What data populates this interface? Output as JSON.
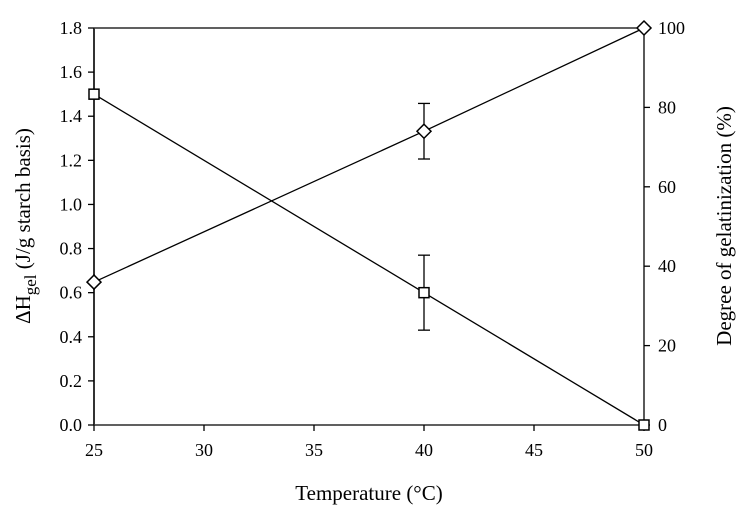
{
  "chart_data": {
    "type": "line",
    "title": "",
    "xlabel": "Temperature (°C)",
    "ylabel": "ΔHgel (J/g starch basis)",
    "ylabel_main": "ΔH",
    "ylabel_sub": "gel",
    "ylabel_rest": " (J/g starch basis)",
    "y2label": "Degree of gelatinization (%)",
    "xlim": [
      25,
      50
    ],
    "ylim": [
      0,
      1.8
    ],
    "y2lim": [
      0,
      100
    ],
    "x_ticks": [
      "25",
      "30",
      "35",
      "40",
      "45",
      "50"
    ],
    "y_ticks": [
      "0.0",
      "0.2",
      "0.4",
      "0.6",
      "0.8",
      "1.0",
      "1.2",
      "1.4",
      "1.6",
      "1.8"
    ],
    "y2_ticks": [
      "0",
      "20",
      "40",
      "60",
      "80",
      "100"
    ],
    "grid": false,
    "x": [
      25,
      40,
      50
    ],
    "series": [
      {
        "name": "ΔHgel",
        "axis": "left",
        "marker": "square",
        "values": [
          1.5,
          0.6,
          0.0
        ],
        "error_low": [
          null,
          0.43,
          null
        ],
        "error_high": [
          null,
          0.77,
          null
        ]
      },
      {
        "name": "Degree of gelatinization",
        "axis": "right",
        "marker": "diamond",
        "values": [
          36,
          74,
          100
        ],
        "error_low": [
          null,
          67,
          null
        ],
        "error_high": [
          null,
          81,
          null
        ]
      }
    ]
  }
}
